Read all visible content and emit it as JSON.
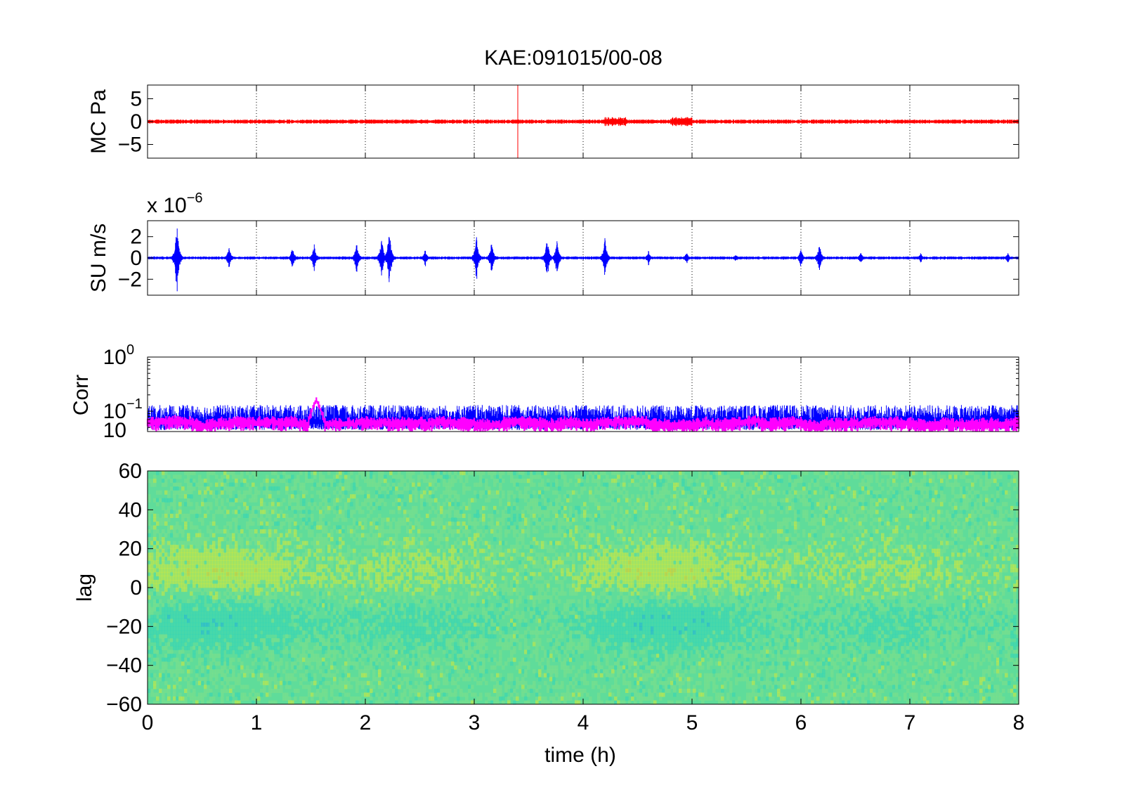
{
  "figure": {
    "title": "KAE:091015/00-08",
    "xlabel": "time (h)"
  },
  "chart_data": [
    {
      "type": "line",
      "ylabel": "MC Pa",
      "xlim": [
        0,
        8
      ],
      "ylim": [
        -8,
        8
      ],
      "yticks": [
        "5",
        "0",
        "−5"
      ],
      "ytick_values": [
        5,
        0,
        -5
      ],
      "grid": true,
      "series": [
        {
          "color": "#ff0000",
          "baseline": 0,
          "amplitude": 0.3,
          "spikes": [
            {
              "x": 3.4,
              "y": 8
            }
          ]
        }
      ]
    },
    {
      "type": "line",
      "ylabel": "SU m/s",
      "exponent_label": "x 10",
      "exponent_sup": "−6",
      "xlim": [
        0,
        8
      ],
      "ylim": [
        -3.5,
        3.5
      ],
      "yticks": [
        "2",
        "0",
        "−2"
      ],
      "ytick_values": [
        2,
        0,
        -2
      ],
      "grid": true,
      "series": [
        {
          "color": "#0000ff",
          "baseline": 0,
          "amplitude": 0.1,
          "bursts": [
            {
              "x": 0.27,
              "amp": 3.4
            },
            {
              "x": 0.75,
              "amp": 1.2
            },
            {
              "x": 1.33,
              "amp": 1.1
            },
            {
              "x": 1.53,
              "amp": 1.4
            },
            {
              "x": 1.92,
              "amp": 1.5
            },
            {
              "x": 2.15,
              "amp": 2.0
            },
            {
              "x": 2.22,
              "amp": 2.9
            },
            {
              "x": 2.55,
              "amp": 0.8
            },
            {
              "x": 3.02,
              "amp": 2.2
            },
            {
              "x": 3.16,
              "amp": 1.7
            },
            {
              "x": 3.67,
              "amp": 2.1
            },
            {
              "x": 3.76,
              "amp": 1.8
            },
            {
              "x": 4.2,
              "amp": 2.0
            },
            {
              "x": 4.6,
              "amp": 0.7
            },
            {
              "x": 4.95,
              "amp": 0.6
            },
            {
              "x": 5.4,
              "amp": 0.4
            },
            {
              "x": 6.0,
              "amp": 0.9
            },
            {
              "x": 6.17,
              "amp": 1.5
            },
            {
              "x": 6.55,
              "amp": 0.6
            },
            {
              "x": 7.1,
              "amp": 0.5
            },
            {
              "x": 7.9,
              "amp": 0.5
            }
          ]
        }
      ]
    },
    {
      "type": "line",
      "ylabel": "Corr",
      "yscale": "log",
      "xlim": [
        0,
        8
      ],
      "ylim": [
        0.042,
        1
      ],
      "yticks": [
        {
          "base": "10",
          "exp": "0",
          "value": 1
        },
        {
          "base": "10",
          "exp": "−1",
          "value": 0.1
        }
      ],
      "ytick_tail": "10",
      "ytick_tail_value": 0.06,
      "grid": true,
      "series": [
        {
          "color": "#0000ff",
          "level": 0.07,
          "upper": 0.13,
          "lower": 0.045
        },
        {
          "color": "#ff00ff",
          "level": 0.06,
          "spread": 0.012,
          "peak": {
            "x": 1.55,
            "y": 0.16
          }
        }
      ]
    },
    {
      "type": "heatmap",
      "ylabel": "lag",
      "xlim": [
        0,
        8
      ],
      "ylim": [
        -60,
        60
      ],
      "yticks": [
        "60",
        "40",
        "20",
        "0",
        "−20",
        "−40",
        "−60"
      ],
      "ytick_values": [
        60,
        40,
        20,
        0,
        -20,
        -40,
        -60
      ],
      "xticks": [
        "0",
        "1",
        "2",
        "3",
        "4",
        "5",
        "6",
        "7",
        "8"
      ],
      "xtick_values": [
        0,
        1,
        2,
        3,
        4,
        5,
        6,
        7,
        8
      ],
      "colormap": [
        "#0b4fd6",
        "#18b0e0",
        "#33d6b8",
        "#7ee08a",
        "#d6ea3a",
        "#f2d020",
        "#e87a14"
      ],
      "background": "#5fdc9a"
    }
  ]
}
